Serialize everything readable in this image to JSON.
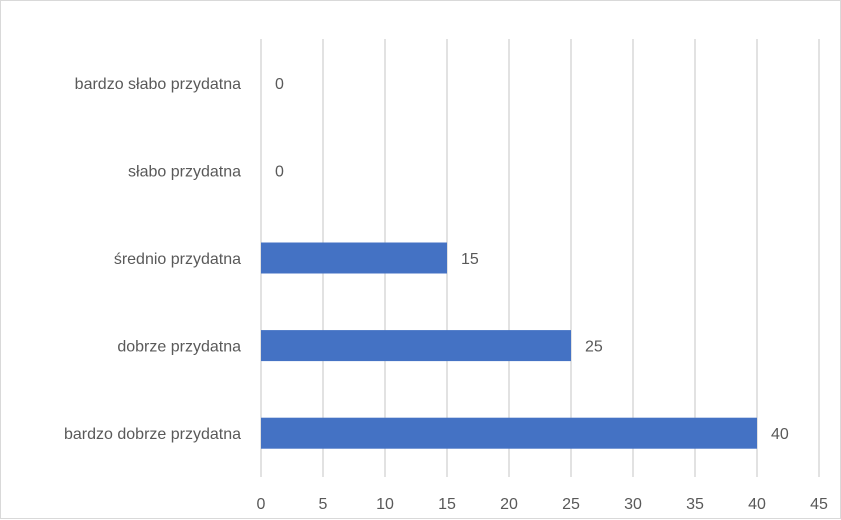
{
  "chart_data": {
    "type": "bar",
    "orientation": "horizontal",
    "categories": [
      "bardzo słabo przydatna",
      "słabo przydatna",
      "średnio przydatna",
      "dobrze przydatna",
      "bardzo dobrze przydatna"
    ],
    "values": [
      0,
      0,
      15,
      25,
      40
    ],
    "data_labels": [
      "0",
      "0",
      "15",
      "25",
      "40"
    ],
    "x_ticks": [
      "0",
      "5",
      "10",
      "15",
      "20",
      "25",
      "30",
      "35",
      "40",
      "45"
    ],
    "xlim": [
      0,
      45
    ],
    "grid": true,
    "legend": "none",
    "bar_color": "#4472C4",
    "grid_color": "#d9d9d9",
    "text_color": "#595959"
  }
}
